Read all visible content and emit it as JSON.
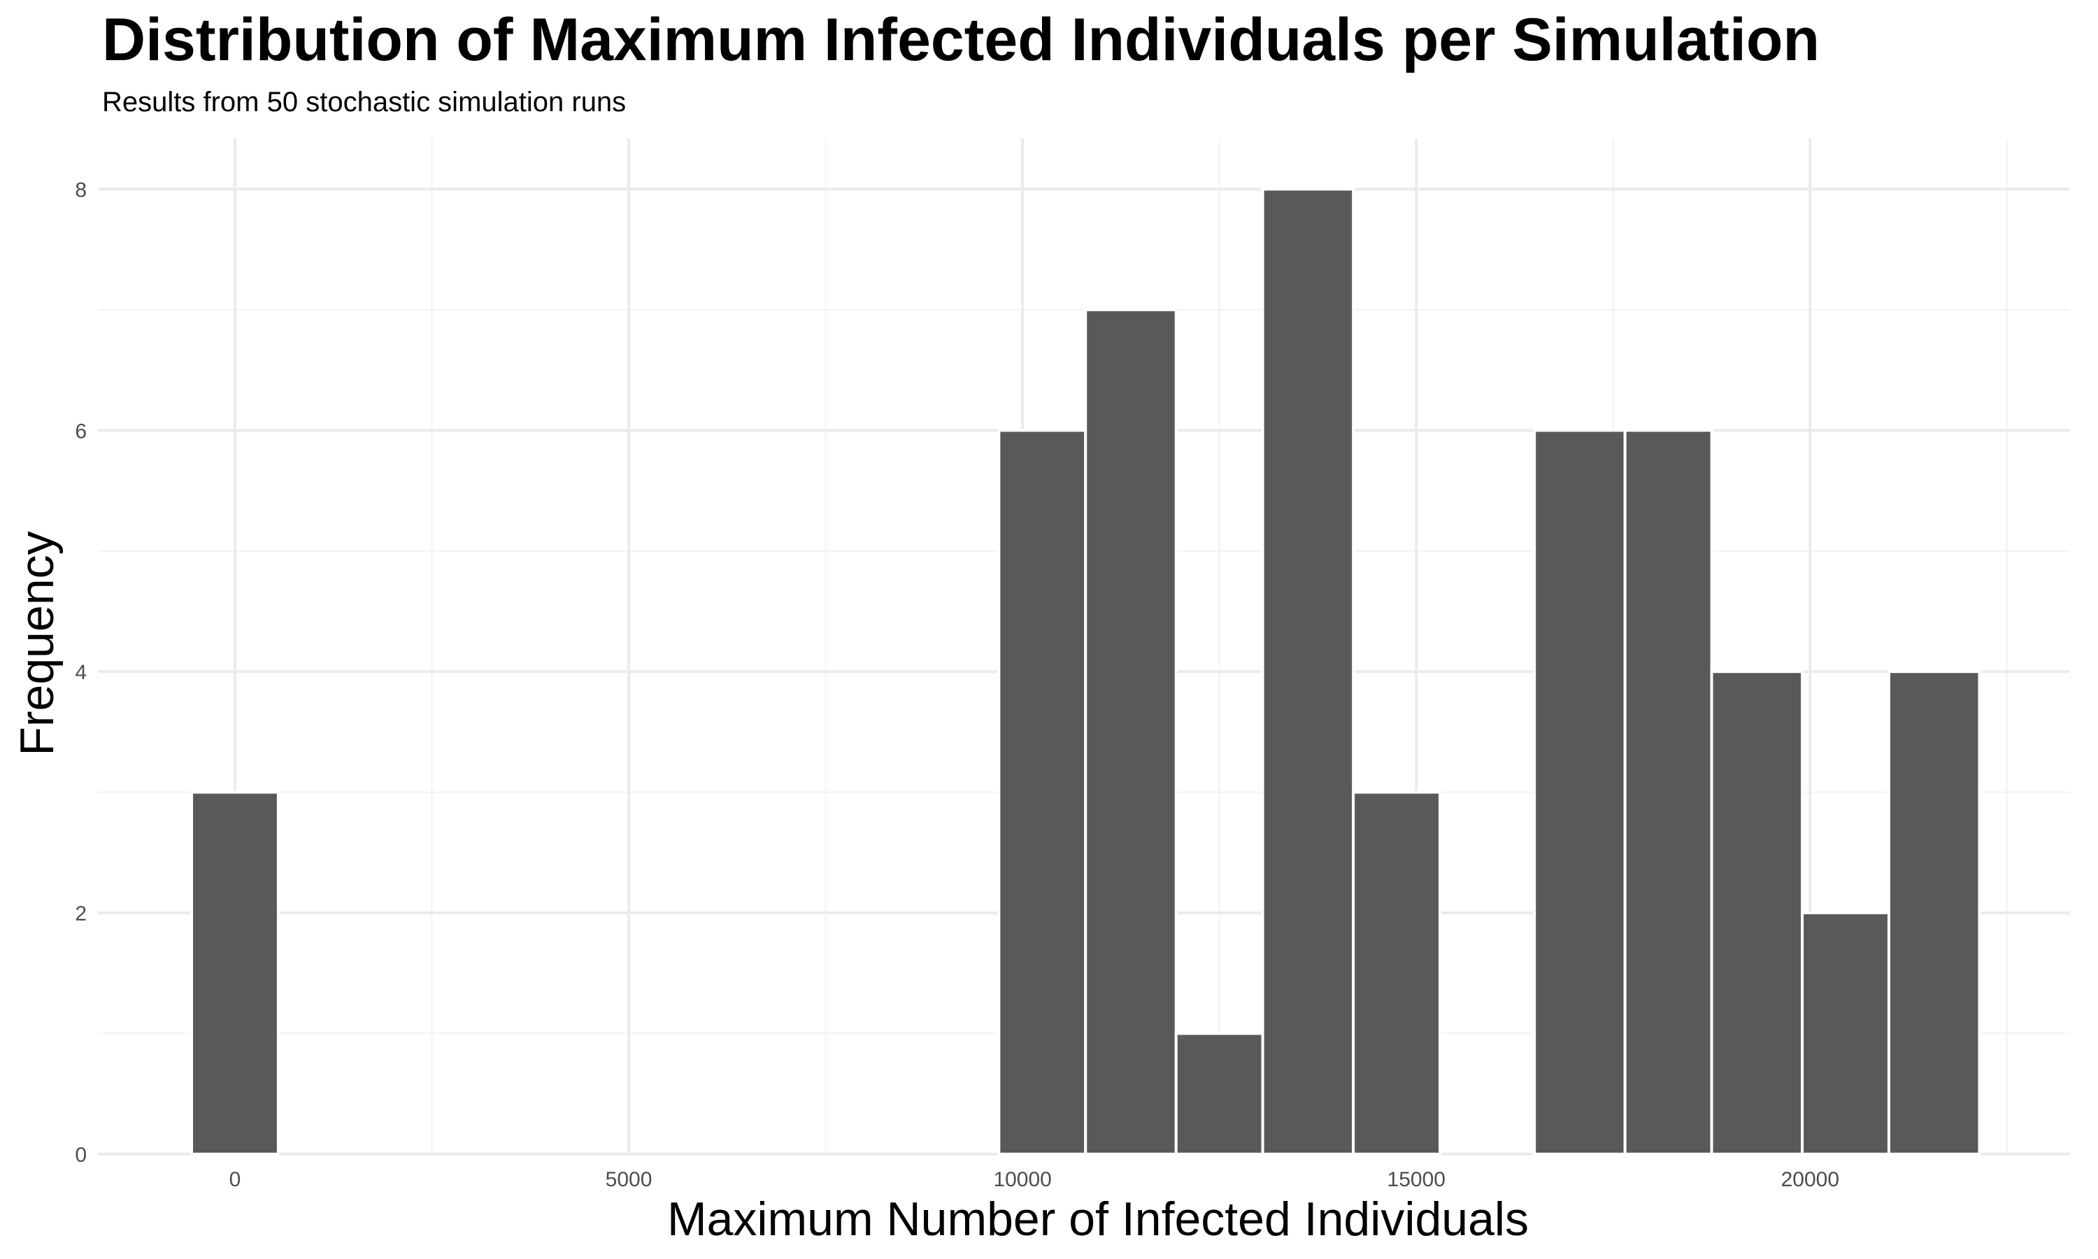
{
  "title": "Distribution of Maximum Infected Individuals per Simulation",
  "subtitle": "Results from 50 stochastic simulation runs",
  "chart_data": {
    "type": "bar",
    "title": "Distribution of Maximum Infected Individuals per Simulation",
    "subtitle": "Results from 50 stochastic simulation runs",
    "xlabel": "Maximum Number of Infected Individuals",
    "ylabel": "Frequency",
    "bins": [
      {
        "x0": -550,
        "x1": 550,
        "count": 3
      },
      {
        "x0": 9700,
        "x1": 10800,
        "count": 6
      },
      {
        "x0": 10800,
        "x1": 11950,
        "count": 7
      },
      {
        "x0": 11950,
        "x1": 13050,
        "count": 1
      },
      {
        "x0": 13050,
        "x1": 14200,
        "count": 8
      },
      {
        "x0": 14200,
        "x1": 15300,
        "count": 3
      },
      {
        "x0": 16500,
        "x1": 17650,
        "count": 6
      },
      {
        "x0": 17650,
        "x1": 18750,
        "count": 6
      },
      {
        "x0": 18750,
        "x1": 19900,
        "count": 4
      },
      {
        "x0": 19900,
        "x1": 21000,
        "count": 2
      },
      {
        "x0": 21000,
        "x1": 22150,
        "count": 4
      }
    ],
    "xlim": [
      -1740,
      23300
    ],
    "ylim": [
      0,
      8.42
    ],
    "x_ticks": [
      0,
      5000,
      10000,
      15000,
      20000
    ],
    "y_ticks": [
      0,
      2,
      4,
      6,
      8
    ],
    "bar_color": "#595959",
    "bar_outline": "#ffffff",
    "grid": true,
    "legend": "none"
  }
}
